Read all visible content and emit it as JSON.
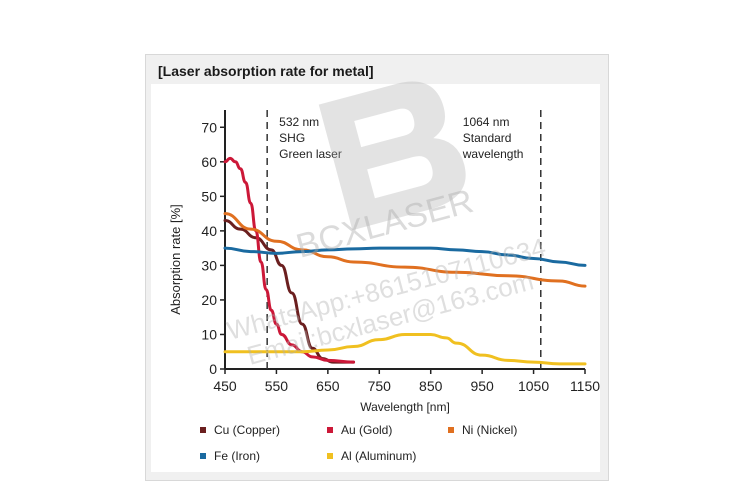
{
  "chart_data": {
    "type": "line",
    "title": "[Laser absorption rate for metal]",
    "xlabel": "Wavelength [nm]",
    "ylabel": "Absorption rate [%]",
    "xlim": [
      450,
      1150
    ],
    "ylim": [
      0,
      75
    ],
    "xticks": [
      450,
      550,
      650,
      750,
      850,
      950,
      1050,
      1150
    ],
    "yticks": [
      0,
      10,
      20,
      30,
      40,
      50,
      60,
      70
    ],
    "grid": false,
    "legend_position": "bottom",
    "annotations": [
      {
        "x": 532,
        "lines": [
          "532 nm",
          "SHG",
          "Green laser"
        ]
      },
      {
        "x": 1064,
        "lines": [
          "1064 nm",
          "Standard",
          "wavelength"
        ]
      }
    ],
    "series": [
      {
        "name": "Cu (Copper)",
        "color": "#6b1f1f",
        "x": [
          450,
          480,
          510,
          540,
          560,
          580,
          600,
          620,
          640,
          660,
          700
        ],
        "y": [
          43,
          40.5,
          38,
          34.5,
          30,
          22,
          13,
          6,
          3,
          2,
          2
        ]
      },
      {
        "name": "Au (Gold)",
        "color": "#cc1838",
        "x": [
          450,
          460,
          470,
          480,
          490,
          500,
          510,
          520,
          530,
          540,
          550,
          560,
          580,
          600,
          620,
          650,
          700
        ],
        "y": [
          60,
          61,
          60,
          58,
          54,
          48,
          40,
          31,
          23,
          17,
          13,
          10,
          7,
          5,
          3.5,
          2.5,
          2
        ]
      },
      {
        "name": "Ni (Nickel)",
        "color": "#e07020",
        "x": [
          450,
          500,
          550,
          600,
          650,
          700,
          800,
          900,
          1000,
          1100,
          1150
        ],
        "y": [
          45,
          40.5,
          37,
          34.5,
          32.5,
          31,
          29.5,
          28,
          27,
          25.5,
          24
        ]
      },
      {
        "name": "Fe (Iron)",
        "color": "#1a6aa0",
        "x": [
          450,
          500,
          550,
          600,
          650,
          700,
          750,
          800,
          850,
          900,
          950,
          1000,
          1050,
          1100,
          1150
        ],
        "y": [
          35,
          34,
          33.5,
          34,
          34.5,
          34.8,
          35,
          35,
          35,
          34.5,
          34,
          33,
          32,
          31,
          30
        ]
      },
      {
        "name": "Al (Aluminum)",
        "color": "#f0c020",
        "x": [
          450,
          500,
          550,
          600,
          650,
          700,
          750,
          800,
          850,
          880,
          900,
          950,
          1000,
          1050,
          1100,
          1150
        ],
        "y": [
          5,
          5,
          5,
          5,
          5.5,
          6.5,
          8.5,
          10,
          10,
          9,
          7.5,
          4,
          2.5,
          2,
          1.5,
          1.5
        ]
      }
    ]
  },
  "legend_items": [
    {
      "label": "Cu (Copper)",
      "color": "#6b1f1f"
    },
    {
      "label": "Au (Gold)",
      "color": "#cc1838"
    },
    {
      "label": "Ni (Nickel)",
      "color": "#e07020"
    },
    {
      "label": "Fe (Iron)",
      "color": "#1a6aa0"
    },
    {
      "label": "Al (Aluminum)",
      "color": "#f0c020"
    }
  ],
  "watermark": {
    "lines": [
      "BCXLASER",
      "WhatsApp:+8615107110634",
      "Email:bcxlaser@163.com"
    ],
    "logo_letter": "B",
    "color": "#b0b0b0"
  }
}
